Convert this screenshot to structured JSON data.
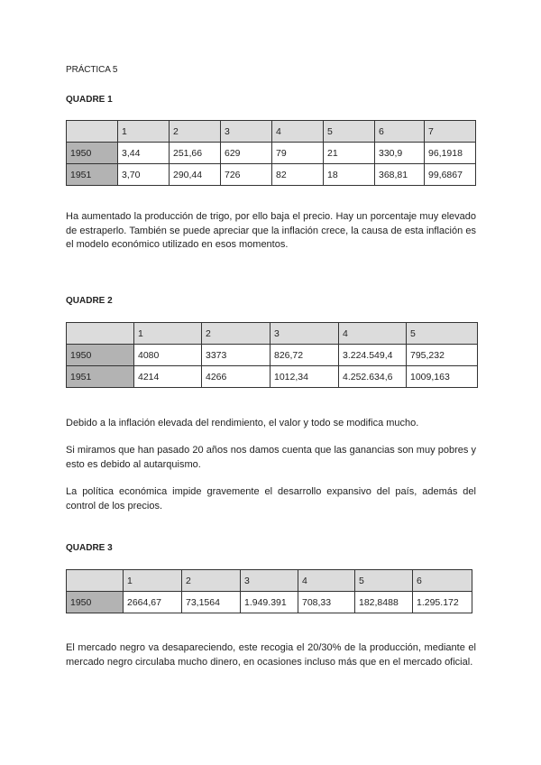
{
  "title": "PRÁCTICA 5",
  "sections": [
    {
      "heading": "QUADRE 1",
      "table": {
        "columns": [
          "1",
          "2",
          "3",
          "4",
          "5",
          "6",
          "7"
        ],
        "rows": [
          {
            "year": "1950",
            "values": [
              "3,44",
              "251,66",
              "629",
              "79",
              "21",
              "330,9",
              "96,1918"
            ]
          },
          {
            "year": "1951",
            "values": [
              "3,70",
              "290,44",
              "726",
              "82",
              "18",
              "368,81",
              "99,6867"
            ]
          }
        ]
      },
      "paragraphs": [
        "Ha aumentado la producción de trigo, por ello baja el precio. Hay un porcentaje muy elevado de estraperlo. También se puede apreciar que la inflación crece, la causa de esta inflación es el modelo económico utilizado en esos momentos."
      ]
    },
    {
      "heading": "QUADRE 2",
      "table": {
        "columns": [
          "1",
          "2",
          "3",
          "4",
          "5"
        ],
        "rows": [
          {
            "year": "1950",
            "values": [
              "4080",
              "3373",
              "826,72",
              "3.224.549,4",
              "795,232"
            ]
          },
          {
            "year": "1951",
            "values": [
              "4214",
              "4266",
              "1012,34",
              "4.252.634,6",
              "1009,163"
            ]
          }
        ]
      },
      "paragraphs": [
        "Debido a la inflación elevada del rendimiento, el valor y todo se modifica mucho.",
        "Si miramos que han pasado 20 años nos damos cuenta que las ganancias son muy pobres y esto es debido al autarquismo.",
        "La política económica impide gravemente el desarrollo expansivo del país, además del control de los precios."
      ]
    },
    {
      "heading": "QUADRE 3",
      "table": {
        "columns": [
          "1",
          "2",
          "3",
          "4",
          "5",
          "6"
        ],
        "rows": [
          {
            "year": "1950",
            "values": [
              "2664,67",
              "73,1564",
              "1.949.391",
              "708,33",
              "182,8488",
              "1.295.172"
            ]
          }
        ]
      },
      "paragraphs": [
        "El mercado negro va desapareciendo, este recogia el 20/30% de la producción, mediante el mercado negro circulaba mucho dinero, en ocasiones incluso más que en el mercado oficial."
      ]
    }
  ]
}
